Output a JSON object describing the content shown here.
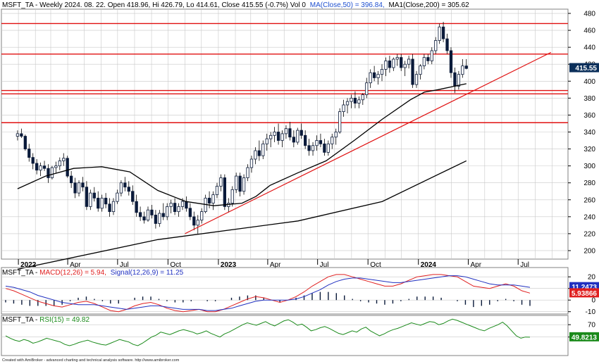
{
  "header": {
    "price": "MSFT_TA - Weekly 2024. 08. 22. Open 418.96, Hi 426.79, Lo 414.61, Close 415.55 (-0.7%) Vol 0",
    "ma50": "MA(Close,50) = 396.84,",
    "ma200": "MA1(Close,200) = 305.62",
    "macd_prefix": "MSFT_TA - ",
    "macd_label": "MACD(12,26) = 5.94,",
    "signal_label": "Signal(12,26,9) = 11.25",
    "rsi_prefix": "MSFT_TA - ",
    "rsi_label": "RSI(15) = 49.82"
  },
  "footer": "Created with AmiBroker - advanced charting and technical analysis software. http://www.amibroker.com",
  "badges": {
    "price": "415.55",
    "macd_signal": "11.2473",
    "macd": "5.93866",
    "rsi": "49.8213"
  },
  "colors": {
    "price_badge": "#0b2f5a",
    "macd_line": "#e02020",
    "signal_line": "#2030c0",
    "rsi_line": "#1a8a1a",
    "hline": "#e01010",
    "ma": "#000000",
    "grid": "#c8c8c8"
  },
  "chart_data": [
    {
      "type": "candlestick",
      "title": "MSFT_TA - Weekly",
      "ylim": [
        190,
        485
      ],
      "yticks": [
        200,
        220,
        240,
        260,
        280,
        300,
        320,
        340,
        360,
        380,
        400,
        420,
        440,
        460,
        480
      ],
      "x_labels": [
        "2022",
        "Apr",
        "Jul",
        "Oct",
        "2023",
        "Apr",
        "Jul",
        "Oct",
        "2024",
        "Apr",
        "Jul"
      ],
      "horizontal_lines": [
        468,
        432,
        389,
        385,
        351
      ],
      "trendline": {
        "from": [
          "2022-11-01",
          220
        ],
        "to": [
          "2024-08-30",
          434
        ]
      },
      "ma50_points": [
        [
          0,
          273
        ],
        [
          10,
          288
        ],
        [
          20,
          297
        ],
        [
          30,
          299
        ],
        [
          40,
          293
        ],
        [
          50,
          271
        ],
        [
          60,
          258
        ],
        [
          70,
          253
        ],
        [
          80,
          256
        ],
        [
          85,
          264
        ],
        [
          90,
          277
        ],
        [
          100,
          292
        ],
        [
          110,
          306
        ],
        [
          120,
          330
        ],
        [
          130,
          355
        ],
        [
          140,
          378
        ],
        [
          145,
          387
        ],
        [
          150,
          390
        ],
        [
          160,
          397
        ]
      ],
      "ma200_points": [
        [
          0,
          178
        ],
        [
          50,
          213
        ],
        [
          100,
          235
        ],
        [
          130,
          258
        ],
        [
          160,
          306
        ]
      ],
      "candles": [
        [
          335,
          342,
          330,
          338
        ],
        [
          338,
          344,
          333,
          335
        ],
        [
          335,
          337,
          318,
          320
        ],
        [
          320,
          326,
          305,
          310
        ],
        [
          310,
          315,
          296,
          303
        ],
        [
          303,
          308,
          290,
          295
        ],
        [
          295,
          304,
          288,
          300
        ],
        [
          300,
          306,
          294,
          297
        ],
        [
          297,
          302,
          280,
          286
        ],
        [
          286,
          300,
          284,
          298
        ],
        [
          298,
          305,
          292,
          300
        ],
        [
          300,
          310,
          295,
          306
        ],
        [
          306,
          315,
          300,
          309
        ],
        [
          309,
          312,
          286,
          288
        ],
        [
          288,
          294,
          274,
          280
        ],
        [
          280,
          286,
          262,
          268
        ],
        [
          268,
          283,
          264,
          280
        ],
        [
          280,
          287,
          270,
          275
        ],
        [
          275,
          282,
          248,
          252
        ],
        [
          252,
          272,
          248,
          268
        ],
        [
          268,
          275,
          258,
          262
        ],
        [
          262,
          270,
          246,
          250
        ],
        [
          250,
          266,
          246,
          262
        ],
        [
          262,
          268,
          250,
          255
        ],
        [
          255,
          262,
          240,
          246
        ],
        [
          246,
          262,
          242,
          258
        ],
        [
          258,
          272,
          255,
          268
        ],
        [
          268,
          283,
          264,
          280
        ],
        [
          280,
          287,
          270,
          275
        ],
        [
          275,
          282,
          265,
          270
        ],
        [
          270,
          277,
          254,
          258
        ],
        [
          258,
          266,
          240,
          245
        ],
        [
          245,
          252,
          235,
          240
        ],
        [
          240,
          246,
          232,
          236
        ],
        [
          236,
          252,
          234,
          248
        ],
        [
          248,
          254,
          238,
          242
        ],
        [
          242,
          248,
          226,
          232
        ],
        [
          232,
          248,
          228,
          244
        ],
        [
          244,
          256,
          236,
          240
        ],
        [
          240,
          256,
          236,
          252
        ],
        [
          252,
          260,
          244,
          256
        ],
        [
          256,
          262,
          242,
          246
        ],
        [
          246,
          256,
          240,
          252
        ],
        [
          252,
          262,
          248,
          258
        ],
        [
          258,
          264,
          246,
          250
        ],
        [
          250,
          256,
          236,
          240
        ],
        [
          240,
          246,
          224,
          230
        ],
        [
          230,
          242,
          220,
          236
        ],
        [
          236,
          250,
          232,
          246
        ],
        [
          246,
          266,
          244,
          262
        ],
        [
          262,
          270,
          250,
          256
        ],
        [
          256,
          270,
          248,
          266
        ],
        [
          266,
          280,
          262,
          276
        ],
        [
          276,
          290,
          270,
          286
        ],
        [
          286,
          290,
          248,
          252
        ],
        [
          252,
          262,
          245,
          256
        ],
        [
          256,
          276,
          252,
          272
        ],
        [
          272,
          292,
          268,
          288
        ],
        [
          288,
          292,
          264,
          270
        ],
        [
          270,
          290,
          266,
          286
        ],
        [
          286,
          302,
          282,
          298
        ],
        [
          298,
          312,
          292,
          308
        ],
        [
          308,
          322,
          302,
          318
        ],
        [
          318,
          330,
          306,
          312
        ],
        [
          312,
          330,
          308,
          326
        ],
        [
          326,
          338,
          318,
          332
        ],
        [
          332,
          340,
          322,
          336
        ],
        [
          336,
          346,
          328,
          340
        ],
        [
          340,
          350,
          325,
          330
        ],
        [
          330,
          342,
          322,
          338
        ],
        [
          338,
          348,
          332,
          344
        ],
        [
          344,
          352,
          330,
          334
        ],
        [
          334,
          342,
          322,
          328
        ],
        [
          328,
          345,
          325,
          342
        ],
        [
          342,
          350,
          332,
          336
        ],
        [
          336,
          342,
          320,
          324
        ],
        [
          324,
          332,
          312,
          318
        ],
        [
          318,
          328,
          312,
          324
        ],
        [
          324,
          336,
          318,
          330
        ],
        [
          330,
          338,
          322,
          326
        ],
        [
          326,
          332,
          312,
          316
        ],
        [
          316,
          330,
          312,
          326
        ],
        [
          326,
          338,
          320,
          334
        ],
        [
          334,
          344,
          325,
          340
        ],
        [
          340,
          368,
          338,
          364
        ],
        [
          364,
          378,
          358,
          372
        ],
        [
          372,
          380,
          362,
          376
        ],
        [
          376,
          384,
          368,
          380
        ],
        [
          380,
          388,
          368,
          374
        ],
        [
          374,
          382,
          368,
          378
        ],
        [
          378,
          386,
          372,
          384
        ],
        [
          384,
          404,
          380,
          398
        ],
        [
          398,
          414,
          392,
          410
        ],
        [
          410,
          418,
          400,
          404
        ],
        [
          404,
          412,
          396,
          408
        ],
        [
          408,
          420,
          400,
          414
        ],
        [
          414,
          428,
          406,
          424
        ],
        [
          424,
          430,
          410,
          416
        ],
        [
          416,
          428,
          412,
          426
        ],
        [
          426,
          432,
          418,
          428
        ],
        [
          428,
          432,
          412,
          416
        ],
        [
          416,
          424,
          406,
          420
        ],
        [
          420,
          430,
          415,
          426
        ],
        [
          426,
          432,
          392,
          396
        ],
        [
          396,
          412,
          392,
          408
        ],
        [
          408,
          420,
          402,
          418
        ],
        [
          418,
          432,
          414,
          428
        ],
        [
          428,
          432,
          420,
          424
        ],
        [
          424,
          440,
          420,
          436
        ],
        [
          436,
          452,
          432,
          448
        ],
        [
          448,
          468,
          444,
          464
        ],
        [
          464,
          470,
          446,
          450
        ],
        [
          450,
          456,
          432,
          436
        ],
        [
          436,
          440,
          404,
          410
        ],
        [
          410,
          416,
          386,
          394
        ],
        [
          394,
          412,
          390,
          408
        ],
        [
          408,
          426,
          404,
          418
        ],
        [
          418,
          426,
          414,
          415
        ]
      ]
    },
    {
      "type": "line",
      "title": "MACD(12,26), Signal(12,26,9)",
      "ylim": [
        -12,
        28
      ],
      "yticks": [
        20,
        10,
        0,
        -10
      ],
      "series": [
        {
          "name": "MACD(12,26)",
          "values": [
            10,
            8,
            5,
            2,
            -1,
            -3,
            -5,
            -6,
            -4,
            -2,
            -1,
            -3,
            -6,
            -9,
            -10,
            -8,
            -5,
            -3,
            -2,
            -4,
            -7,
            -9,
            -10,
            -9,
            -8,
            -10,
            -10,
            -8,
            -5,
            -2,
            1,
            3,
            2,
            0,
            -2,
            0,
            3,
            7,
            12,
            16,
            20,
            22,
            22,
            20,
            18,
            16,
            14,
            12,
            12,
            14,
            17,
            20,
            21,
            22,
            22,
            21,
            20,
            16,
            12,
            11,
            10,
            12,
            14,
            12,
            8,
            6
          ]
        },
        {
          "name": "Signal(12,26,9)",
          "values": [
            12,
            11,
            9,
            7,
            4,
            2,
            0,
            -2,
            -3,
            -4,
            -4,
            -4,
            -5,
            -6,
            -7,
            -8,
            -7,
            -6,
            -5,
            -5,
            -6,
            -7,
            -8,
            -8,
            -8,
            -9,
            -9,
            -8,
            -7,
            -5,
            -3,
            -1,
            0,
            0,
            0,
            0,
            1,
            3,
            6,
            9,
            13,
            16,
            18,
            19,
            19,
            18,
            17,
            16,
            15,
            15,
            16,
            17,
            18,
            19,
            20,
            21,
            21,
            20,
            18,
            16,
            14,
            13,
            13,
            13,
            12,
            11
          ]
        }
      ]
    },
    {
      "type": "line",
      "title": "RSI(15)",
      "ylim": [
        20,
        85
      ],
      "yticks": [
        70,
        50
      ],
      "series": [
        {
          "name": "RSI(15)",
          "values": [
            52,
            48,
            45,
            43,
            46,
            44,
            40,
            42,
            45,
            48,
            46,
            44,
            42,
            38,
            36,
            38,
            41,
            43,
            45,
            42,
            40,
            38,
            37,
            40,
            43,
            46,
            44,
            42,
            38,
            36,
            40,
            45,
            50,
            53,
            58,
            56,
            54,
            57,
            60,
            62,
            60,
            58,
            55,
            57,
            60,
            56,
            53,
            50,
            55,
            58,
            62,
            66,
            70,
            73,
            71,
            69,
            72,
            75,
            71,
            68,
            72,
            76,
            78,
            74,
            69,
            71,
            66,
            60,
            62,
            65,
            67,
            64,
            60,
            56,
            54,
            57,
            60,
            58,
            63,
            66,
            60,
            56,
            52,
            55,
            59,
            62,
            64,
            67,
            70,
            73,
            71,
            69,
            72,
            75,
            74,
            70,
            72,
            76,
            79,
            77,
            74,
            71,
            68,
            65,
            62,
            60,
            64,
            67,
            70,
            74,
            68,
            60,
            52,
            48,
            50,
            49.8
          ]
        }
      ]
    }
  ]
}
